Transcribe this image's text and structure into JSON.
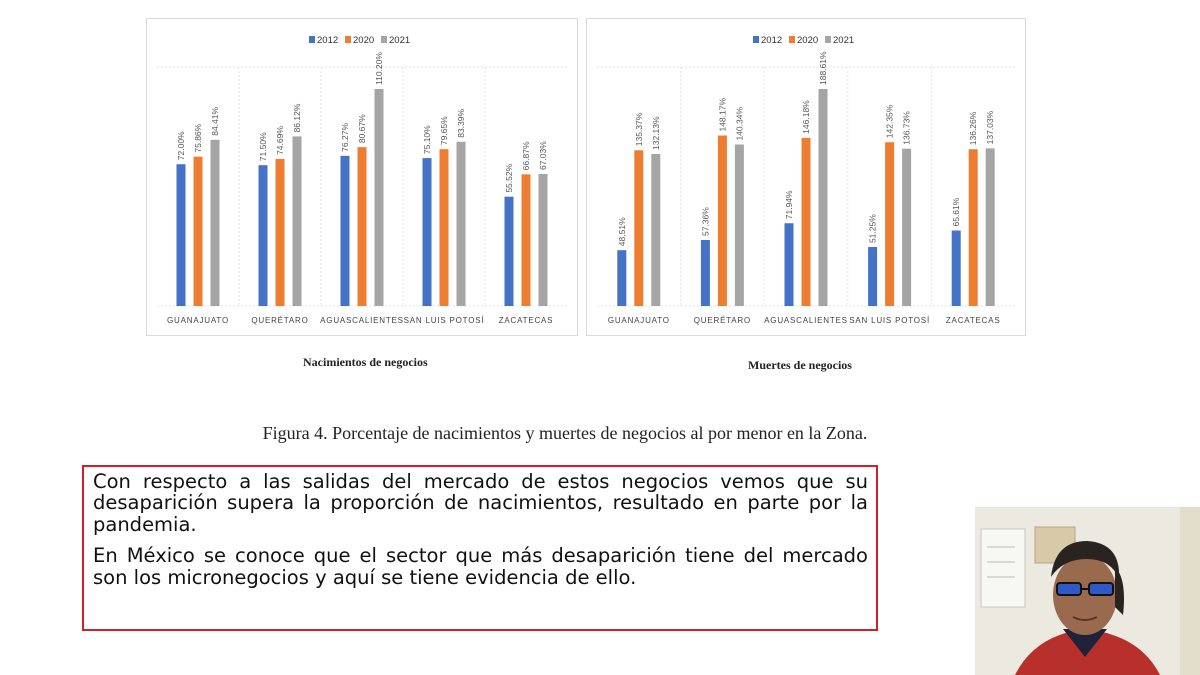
{
  "chart_data": [
    {
      "type": "bar",
      "categories": [
        "GUANAJUATO",
        "QUERÉTARO",
        "AGUASCALIENTES",
        "SAN LUIS POTOSÍ",
        "ZACATECAS"
      ],
      "series": [
        {
          "name": "2012",
          "values": [
            72.0,
            71.5,
            76.27,
            75.1,
            55.52
          ],
          "labels": [
            "72.00%",
            "71.50%",
            "76.27%",
            "75.10%",
            "55.52%"
          ],
          "color": "#4472c4"
        },
        {
          "name": "2020",
          "values": [
            75.86,
            74.69,
            80.67,
            79.65,
            66.87
          ],
          "labels": [
            "75.86%",
            "74.69%",
            "80.67%",
            "79.65%",
            "66.87%"
          ],
          "color": "#ed7d31"
        },
        {
          "name": "2021",
          "values": [
            84.41,
            86.12,
            110.2,
            83.39,
            67.03
          ],
          "labels": [
            "84.41%",
            "86.12%",
            "110.20%",
            "83.39%",
            "67.03%"
          ],
          "color": "#a5a5a5"
        }
      ],
      "ylim": [
        0,
        110.2
      ],
      "legend": "top-center",
      "grid": false
    },
    {
      "type": "bar",
      "categories": [
        "GUANAJUATO",
        "QUERÉTARO",
        "AGUASCALIENTES",
        "SAN LUIS POTOSÍ",
        "ZACATECAS"
      ],
      "series": [
        {
          "name": "2012",
          "values": [
            48.51,
            57.36,
            71.94,
            51.25,
            65.61
          ],
          "labels": [
            "48.51%",
            "57.36%",
            "71.94%",
            "51.25%",
            "65.61%"
          ],
          "color": "#4472c4"
        },
        {
          "name": "2020",
          "values": [
            135.37,
            148.17,
            146.18,
            142.35,
            136.26
          ],
          "labels": [
            "135.37%",
            "148.17%",
            "146.18%",
            "142.35%",
            "136.26%"
          ],
          "color": "#ed7d31"
        },
        {
          "name": "2021",
          "values": [
            132.13,
            140.34,
            188.61,
            136.73,
            137.03
          ],
          "labels": [
            "132.13%",
            "140.34%",
            "188.61%",
            "136.73%",
            "137.03%"
          ],
          "color": "#a5a5a5"
        }
      ],
      "ylim": [
        0,
        188.61
      ],
      "legend": "top-center",
      "grid": false
    }
  ],
  "charts": {
    "births_subtitle": "Nacimientos de negocios",
    "deaths_subtitle": "Muertes de negocios"
  },
  "caption": "Figura 4. Porcentaje de nacimientos y muertes de negocios al por menor en la Zona.",
  "textbox": {
    "paragraph1": "Con respecto a las salidas del mercado de estos negocios vemos que su desaparición supera la proporción de nacimientos, resultado en parte por la pandemia.",
    "paragraph2": "En México se conoce que el sector que más desaparición tiene del mercado son los micronegocios y aquí se tiene evidencia de ello.",
    "border_color": "#d0202a"
  },
  "webcam": {
    "description_icon": "presenter-webcam-icon"
  }
}
